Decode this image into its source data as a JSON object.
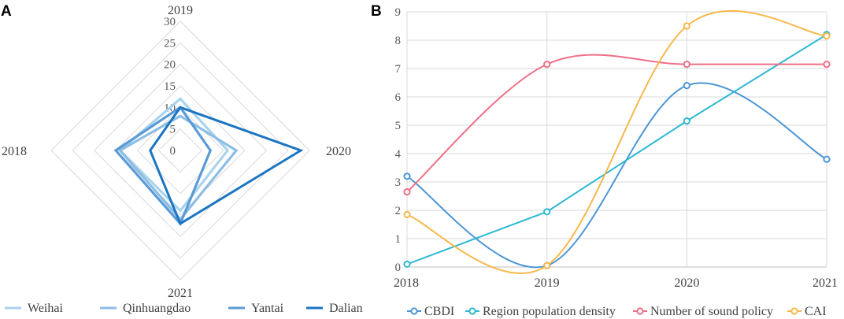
{
  "panels": {
    "a": "A",
    "b": "B"
  },
  "chart_data": [
    {
      "panel": "A",
      "type": "radar",
      "axes": [
        "2019",
        "2020",
        "2021",
        "2018"
      ],
      "rlim": [
        0,
        30
      ],
      "rticks": [
        "0",
        "5",
        "10",
        "15",
        "20",
        "25",
        "30"
      ],
      "series": [
        {
          "name": "Weihai",
          "color": "#a9d3ee",
          "values": [
            12,
            11,
            14,
            14
          ]
        },
        {
          "name": "Qinhuangdao",
          "color": "#8cbde5",
          "values": [
            8,
            13,
            16,
            14
          ]
        },
        {
          "name": "Yantai",
          "color": "#5b9bd5",
          "values": [
            10,
            7,
            17,
            15
          ]
        },
        {
          "name": "Dalian",
          "color": "#1b75c2",
          "values": [
            10,
            28,
            17,
            7
          ]
        }
      ],
      "legend_position": "bottom"
    },
    {
      "panel": "B",
      "type": "line",
      "smooth": true,
      "categories": [
        "2018",
        "2019",
        "2020",
        "2021"
      ],
      "ylim": [
        0,
        9
      ],
      "yticks": [
        "0",
        "1",
        "2",
        "3",
        "4",
        "5",
        "6",
        "7",
        "8",
        "9"
      ],
      "grid": true,
      "series": [
        {
          "name": "CBDI",
          "color": "#4d96d6",
          "values": [
            3.2,
            0.05,
            6.4,
            3.8
          ]
        },
        {
          "name": "Region population density",
          "color": "#2eb8d3",
          "values": [
            0.1,
            1.95,
            5.15,
            8.2
          ]
        },
        {
          "name": "Number of sound policy",
          "color": "#ef6f86",
          "values": [
            2.65,
            7.15,
            7.15,
            7.15
          ]
        },
        {
          "name": "CAI",
          "color": "#f7b84b",
          "values": [
            1.85,
            0.05,
            8.5,
            8.15
          ]
        }
      ],
      "legend_position": "bottom"
    }
  ]
}
